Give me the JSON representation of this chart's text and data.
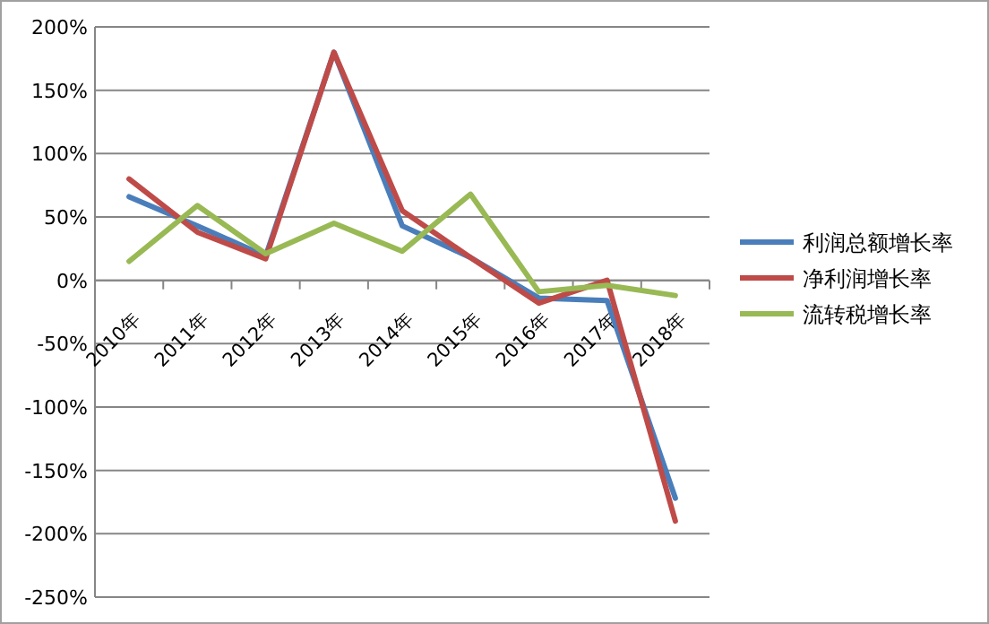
{
  "chart_data": {
    "type": "line",
    "categories": [
      "2010年",
      "2011年",
      "2012年",
      "2013年",
      "2014年",
      "2015年",
      "2016年",
      "2017年",
      "2018年"
    ],
    "series": [
      {
        "name": "利润总额增长率",
        "color": "#4a7ebb",
        "values": [
          66,
          43,
          19,
          180,
          43,
          18,
          -14,
          -16,
          -172
        ]
      },
      {
        "name": "净利润增长率",
        "color": "#be4b48",
        "values": [
          80,
          38,
          17,
          180,
          55,
          18,
          -18,
          0,
          -190
        ]
      },
      {
        "name": "流转税增长率",
        "color": "#98b954",
        "values": [
          15,
          59,
          21,
          45,
          23,
          68,
          -9,
          -4,
          -12
        ]
      }
    ],
    "ylim": [
      -250,
      200
    ],
    "yticks": [
      {
        "value": -250,
        "label": "-250%"
      },
      {
        "value": -200,
        "label": "-200%"
      },
      {
        "value": -150,
        "label": "-150%"
      },
      {
        "value": -100,
        "label": "-100%"
      },
      {
        "value": -50,
        "label": "-50%"
      },
      {
        "value": 0,
        "label": "0%"
      },
      {
        "value": 50,
        "label": "50%"
      },
      {
        "value": 100,
        "label": "100%"
      },
      {
        "value": 150,
        "label": "150%"
      },
      {
        "value": 200,
        "label": "200%"
      }
    ],
    "grid": "y",
    "legend": "right",
    "marker": "none",
    "line_style": "solid"
  }
}
